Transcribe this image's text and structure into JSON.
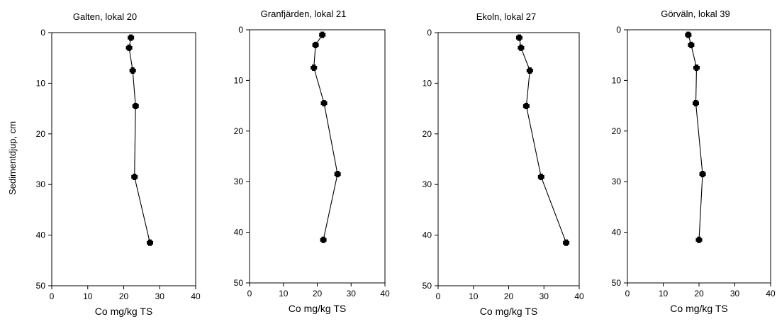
{
  "figure": {
    "ylabel": "Sedimentdjup, cm"
  },
  "chart_data": [
    {
      "type": "line",
      "title": "Galten, lokal 20",
      "xlabel": "Co mg/kg TS",
      "ylabel": "Sedimentdjup, cm",
      "xlim": [
        0,
        40
      ],
      "ylim": [
        0,
        50
      ],
      "y_inverted": true,
      "x_ticks": [
        "0",
        "10",
        "20",
        "30",
        "40"
      ],
      "y_ticks": [
        "0",
        "10",
        "20",
        "30",
        "40",
        "50"
      ],
      "x": [
        22.0,
        21.5,
        22.5,
        23.3,
        23.0,
        27.3
      ],
      "y": [
        1,
        3,
        7.5,
        14.5,
        28.5,
        41.5
      ]
    },
    {
      "type": "line",
      "title": "Granfjärden, lokal 21",
      "xlabel": "Co mg/kg TS",
      "ylabel": "",
      "xlim": [
        0,
        40
      ],
      "ylim": [
        0,
        50
      ],
      "y_inverted": true,
      "x_ticks": [
        "0",
        "10",
        "20",
        "30",
        "40"
      ],
      "y_ticks": [
        "0",
        "10",
        "20",
        "30",
        "40",
        "50"
      ],
      "x": [
        21.5,
        19.5,
        19.0,
        22.0,
        26.0,
        21.8
      ],
      "y": [
        1,
        3,
        7.5,
        14.5,
        28.5,
        41.5
      ]
    },
    {
      "type": "line",
      "title": "Ekoln, lokal 27",
      "xlabel": "Co mg/kg TS",
      "ylabel": "",
      "xlim": [
        0,
        40
      ],
      "ylim": [
        0,
        50
      ],
      "y_inverted": true,
      "x_ticks": [
        "0",
        "10",
        "20",
        "30",
        "40"
      ],
      "y_ticks": [
        "0",
        "10",
        "20",
        "30",
        "40",
        "50"
      ],
      "x": [
        23.0,
        23.5,
        26.0,
        25.0,
        29.2,
        36.3
      ],
      "y": [
        1,
        3,
        7.5,
        14.5,
        28.5,
        41.5
      ]
    },
    {
      "type": "line",
      "title": "Görväln, lokal 39",
      "xlabel": "Co mg/kg TS",
      "ylabel": "",
      "xlim": [
        0,
        40
      ],
      "ylim": [
        0,
        50
      ],
      "y_inverted": true,
      "x_ticks": [
        "0",
        "10",
        "20",
        "30",
        "40"
      ],
      "y_ticks": [
        "0",
        "10",
        "20",
        "30",
        "40",
        "50"
      ],
      "x": [
        17.0,
        17.8,
        19.3,
        19.1,
        21.0,
        20.0
      ],
      "y": [
        1,
        3,
        7.5,
        14.5,
        28.5,
        41.5
      ]
    }
  ]
}
